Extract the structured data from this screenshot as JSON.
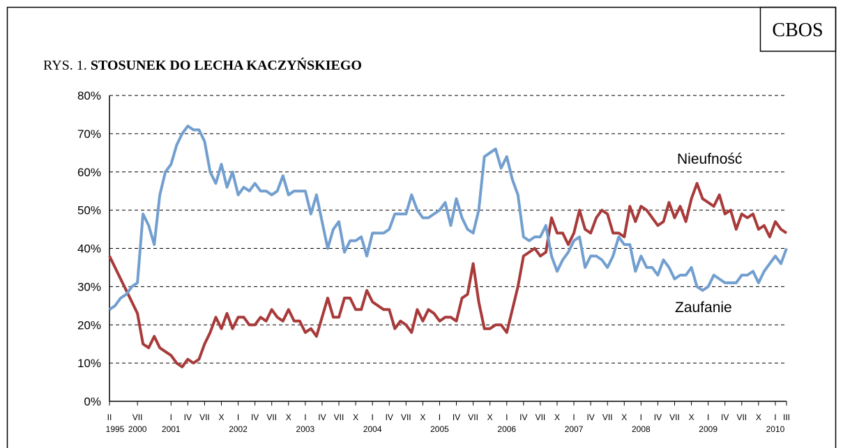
{
  "source": "CBOS",
  "figure_label": "RYS. 1.",
  "chart_data": {
    "type": "line",
    "title": "STOSUNEK DO LECHA KACZYŃSKIEGO",
    "categories": [
      "II",
      null,
      null,
      null,
      null,
      "VII",
      null,
      null,
      null,
      null,
      null,
      "I",
      null,
      null,
      "IV",
      null,
      null,
      "VII",
      null,
      null,
      "X",
      null,
      null,
      "I",
      null,
      null,
      "IV",
      null,
      null,
      "VII",
      null,
      null,
      "X",
      null,
      null,
      "I",
      null,
      null,
      "IV",
      null,
      null,
      "VII",
      null,
      null,
      "X",
      null,
      null,
      "I",
      null,
      null,
      "IV",
      null,
      null,
      "VII",
      null,
      null,
      "X",
      null,
      null,
      "I",
      null,
      null,
      "IV",
      null,
      null,
      "VII",
      null,
      null,
      "X",
      null,
      null,
      "I",
      null,
      null,
      "IV",
      null,
      null,
      "VII",
      null,
      null,
      "X",
      null,
      null,
      "I",
      null,
      null,
      "IV",
      null,
      null,
      "VII",
      null,
      null,
      "X",
      null,
      null,
      "I",
      null,
      null,
      "IV",
      null,
      null,
      "VII",
      null,
      null,
      "X",
      null,
      null,
      "I",
      null,
      null,
      "IV",
      null,
      null,
      "VII",
      null,
      null,
      "X",
      null,
      null,
      "I",
      null,
      "III"
    ],
    "years": [
      "1995",
      null,
      null,
      null,
      null,
      "2000",
      null,
      null,
      null,
      null,
      null,
      "2001",
      null,
      null,
      null,
      null,
      null,
      null,
      null,
      null,
      null,
      null,
      null,
      "2002",
      null,
      null,
      null,
      null,
      null,
      null,
      null,
      null,
      null,
      null,
      null,
      "2003",
      null,
      null,
      null,
      null,
      null,
      null,
      null,
      null,
      null,
      null,
      null,
      "2004",
      null,
      null,
      null,
      null,
      null,
      null,
      null,
      null,
      null,
      null,
      null,
      "2005",
      null,
      null,
      null,
      null,
      null,
      null,
      null,
      null,
      null,
      null,
      null,
      "2006",
      null,
      null,
      null,
      null,
      null,
      null,
      null,
      null,
      null,
      null,
      null,
      "2007",
      null,
      null,
      null,
      null,
      null,
      null,
      null,
      null,
      null,
      null,
      null,
      "2008",
      null,
      null,
      null,
      null,
      null,
      null,
      null,
      null,
      null,
      null,
      null,
      "2009",
      null,
      null,
      null,
      null,
      null,
      null,
      null,
      null,
      null,
      null,
      null,
      "2010",
      null,
      null
    ],
    "series": [
      {
        "name": "Nieufność",
        "color": "#a83a3a",
        "values": [
          38,
          35,
          32,
          29,
          26,
          23,
          15,
          14,
          17,
          14,
          13,
          12,
          10,
          9,
          11,
          10,
          11,
          15,
          18,
          22,
          19,
          23,
          19,
          22,
          22,
          20,
          20,
          22,
          21,
          24,
          22,
          21,
          24,
          21,
          21,
          18,
          19,
          17,
          22,
          27,
          22,
          22,
          27,
          27,
          24,
          24,
          29,
          26,
          25,
          24,
          24,
          19,
          21,
          20,
          18,
          24,
          21,
          24,
          23,
          21,
          22,
          22,
          21,
          27,
          28,
          36,
          26,
          19,
          19,
          20,
          20,
          18,
          24,
          30,
          38,
          39,
          40,
          38,
          39,
          48,
          44,
          44,
          41,
          44,
          50,
          45,
          44,
          48,
          50,
          49,
          44,
          44,
          43,
          51,
          47,
          51,
          50,
          48,
          46,
          47,
          52,
          48,
          51,
          47,
          53,
          57,
          53,
          52,
          51,
          54,
          49,
          50,
          45,
          49,
          48,
          49,
          45,
          46,
          43,
          47,
          45,
          44
        ]
      },
      {
        "name": "Zaufanie",
        "color": "#729fcf",
        "values": [
          24,
          25,
          27,
          28,
          30,
          31,
          49,
          46,
          41,
          54,
          60,
          62,
          67,
          70,
          72,
          71,
          71,
          68,
          60,
          57,
          62,
          56,
          60,
          54,
          56,
          55,
          57,
          55,
          55,
          54,
          55,
          59,
          54,
          55,
          55,
          55,
          49,
          54,
          47,
          40,
          45,
          47,
          39,
          42,
          42,
          43,
          38,
          44,
          44,
          44,
          45,
          49,
          49,
          49,
          54,
          50,
          48,
          48,
          49,
          50,
          52,
          46,
          53,
          48,
          45,
          44,
          50,
          64,
          65,
          66,
          61,
          64,
          58,
          54,
          43,
          42,
          43,
          43,
          46,
          38,
          34,
          37,
          39,
          42,
          43,
          35,
          38,
          38,
          37,
          35,
          38,
          43,
          41,
          41,
          34,
          38,
          35,
          35,
          33,
          37,
          35,
          32,
          33,
          33,
          35,
          30,
          29,
          30,
          33,
          32,
          31,
          31,
          31,
          33,
          33,
          34,
          31,
          34,
          36,
          38,
          36,
          40
        ]
      }
    ],
    "ylim": [
      0,
      80
    ],
    "yticks": [
      {
        "value": 0,
        "label": "0%"
      },
      {
        "value": 10,
        "label": "10%"
      },
      {
        "value": 20,
        "label": "20%"
      },
      {
        "value": 30,
        "label": "30%"
      },
      {
        "value": 40,
        "label": "40%"
      },
      {
        "value": 50,
        "label": "50%"
      },
      {
        "value": 60,
        "label": "60%"
      },
      {
        "value": 70,
        "label": "70%"
      },
      {
        "value": 80,
        "label": "80%"
      }
    ],
    "grid": true
  }
}
